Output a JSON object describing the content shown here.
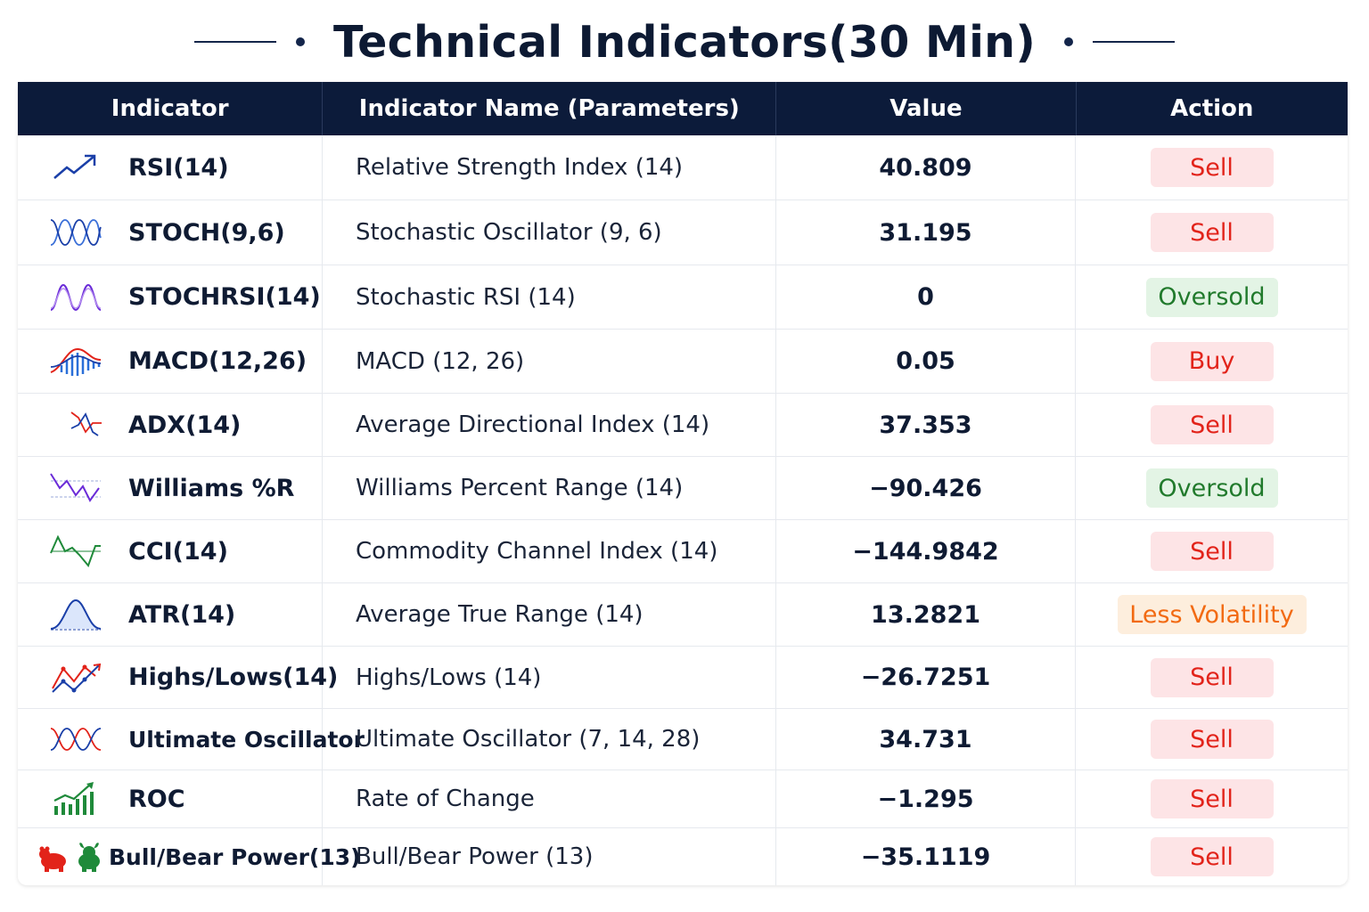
{
  "title": "Technical Indicators(30 Min)",
  "columns": [
    "Indicator",
    "Indicator Name (Parameters)",
    "Value",
    "Action"
  ],
  "colors": {
    "header_bg": "#0c1b3a",
    "sell": "#e2231a",
    "oversold": "#217a2c",
    "less_volatility": "#f26a12"
  },
  "rows": [
    {
      "icon": "trend-up-arrow-icon",
      "indicator": "RSI(14)",
      "name": "Relative Strength Index (14)",
      "value": "40.809",
      "action": "Sell",
      "action_type": "sell"
    },
    {
      "icon": "stochastic-waves-icon",
      "indicator": "STOCH(9,6)",
      "name": "Stochastic Oscillator (9, 6)",
      "value": "31.195",
      "action": "Sell",
      "action_type": "sell"
    },
    {
      "icon": "stochrsi-waves-icon",
      "indicator": "STOCHRSI(14)",
      "name": "Stochastic RSI (14)",
      "value": "0",
      "action": "Oversold",
      "action_type": "oversold"
    },
    {
      "icon": "macd-histogram-icon",
      "indicator": "MACD(12,26)",
      "name": "MACD (12, 26)",
      "value": "0.05",
      "action": "Buy",
      "action_type": "buy"
    },
    {
      "icon": "adx-directional-icon",
      "indicator": "ADX(14)",
      "name": "Average Directional Index (14)",
      "value": "37.353",
      "action": "Sell",
      "action_type": "sell"
    },
    {
      "icon": "williams-wave-icon",
      "indicator": "Williams %R",
      "name": "Williams Percent Range (14)",
      "value": "−90.426",
      "action": "Oversold",
      "action_type": "oversold"
    },
    {
      "icon": "cci-wave-icon",
      "indicator": "CCI(14)",
      "name": "Commodity Channel Index (14)",
      "value": "−144.9842",
      "action": "Sell",
      "action_type": "sell"
    },
    {
      "icon": "atr-bell-curve-icon",
      "indicator": "ATR(14)",
      "name": "Average True Range (14)",
      "value": "13.2821",
      "action": "Less Volatility",
      "action_type": "lessvol"
    },
    {
      "icon": "highs-lows-zigzag-icon",
      "indicator": "Highs/Lows(14)",
      "name": "Highs/Lows (14)",
      "value": "−26.7251",
      "action": "Sell",
      "action_type": "sell"
    },
    {
      "icon": "ultimate-oscillator-waves-icon",
      "indicator": "Ultimate Oscillator",
      "name": "Ultimate Oscillator (7, 14, 28)",
      "value": "34.731",
      "action": "Sell",
      "action_type": "sell"
    },
    {
      "icon": "roc-bars-arrow-icon",
      "indicator": "ROC",
      "name": "Rate of Change",
      "value": "−1.295",
      "action": "Sell",
      "action_type": "sell"
    },
    {
      "icon": "bull-bear-icon",
      "indicator": "Bull/Bear Power(13)",
      "name": "Bull/Bear Power (13)",
      "value": "−35.1119",
      "action": "Sell",
      "action_type": "sell"
    }
  ]
}
